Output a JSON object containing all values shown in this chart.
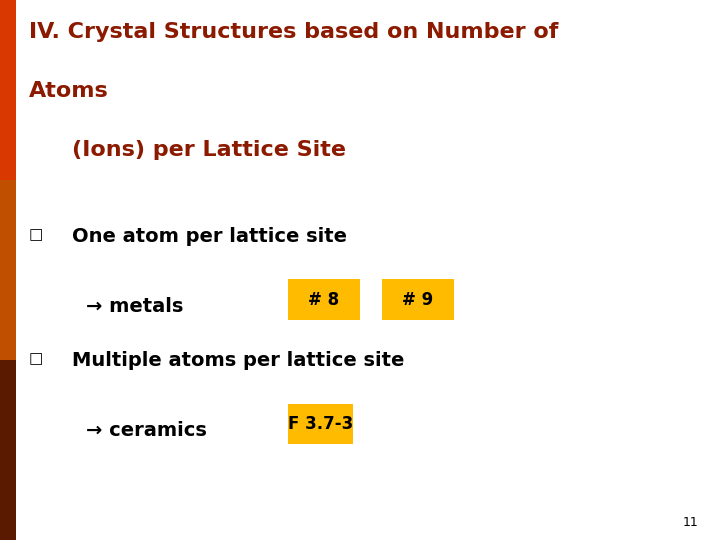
{
  "title_line1": "IV. Crystal Structures based on Number of",
  "title_line2": "Atoms",
  "title_line3": "    (Ions) per Lattice Site",
  "title_color": "#8B1A00",
  "bg_color": "#FFFFFF",
  "bullet_char": "□",
  "bullet1_text": "One atom per lattice site",
  "bullet1_sub": "→ metals",
  "bullet1_tags": [
    "# 8",
    "# 9"
  ],
  "bullet2_text": "Multiple atoms per lattice site",
  "bullet2_sub": "→ ceramics",
  "bullet2_tag": "F 3.7-3",
  "tag_bg_color": "#FFBB00",
  "tag_text_color": "#000000",
  "body_text_color": "#000000",
  "bullet_color": "#000000",
  "page_number": "11",
  "left_bar_colors": [
    "#5A1A00",
    "#5A1A00",
    "#C05000",
    "#C05000",
    "#D93800",
    "#D93800"
  ],
  "font_size_title": 16,
  "font_size_body": 14,
  "font_size_sub": 14,
  "font_size_tag": 12,
  "font_size_page": 9
}
